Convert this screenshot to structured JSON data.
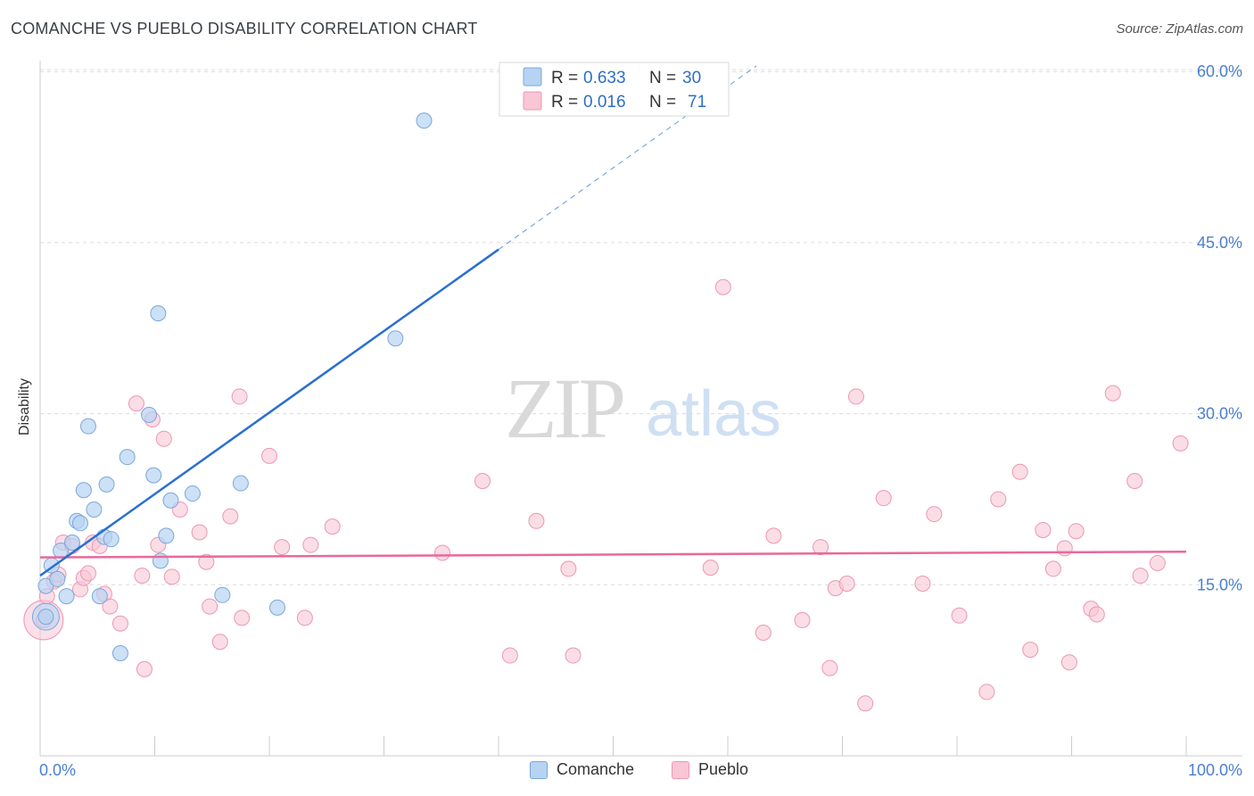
{
  "header": {
    "title": "COMANCHE VS PUEBLO DISABILITY CORRELATION CHART",
    "source": "Source: ZipAtlas.com"
  },
  "watermark": {
    "zip": "ZIP",
    "atlas": "atlas"
  },
  "legend": {
    "rows": [
      {
        "r_label": "R =",
        "r_value": "0.633",
        "n_label": "N =",
        "n_value": "30"
      },
      {
        "r_label": "R =",
        "r_value": "0.016",
        "n_label": "N =",
        "n_value": "71"
      }
    ]
  },
  "bottom_legend": {
    "series1": "Comanche",
    "series2": "Pueblo"
  },
  "colors": {
    "comanche_fill": "#b7d3f2",
    "comanche_stroke": "#7ba7dc",
    "comanche_line": "#2a6fd1",
    "pueblo_fill": "#f9c6d5",
    "pueblo_stroke": "#ec97b3",
    "pueblo_line": "#e8699a",
    "value_text": "#2f6ec4",
    "tick_text": "#4a7fd0",
    "grid": "#dcdcdc"
  },
  "chart_data": {
    "type": "scatter",
    "title": "COMANCHE VS PUEBLO DISABILITY CORRELATION CHART",
    "xlabel": "",
    "ylabel": "Disability",
    "xlim": [
      0,
      100
    ],
    "ylim": [
      0,
      65
    ],
    "x_tick_labels": [
      "0.0%",
      "100.0%"
    ],
    "y_ticks": [
      15,
      30,
      45,
      60
    ],
    "y_tick_labels": [
      "15.0%",
      "30.0%",
      "45.0%",
      "60.0%"
    ],
    "grid": "horizontal dashed",
    "legend_position": "top-center",
    "series": [
      {
        "name": "Comanche",
        "r": 0.633,
        "n": 30,
        "trend": {
          "x_start": 0,
          "y_start": 15.8,
          "x_solid_end": 40,
          "y_solid_end": 44.4,
          "x_dash_end": 62.5,
          "y_dash_end": 60.5
        },
        "points": [
          [
            0.5,
            12.2
          ],
          [
            0.5,
            14.9
          ],
          [
            1.0,
            16.7
          ],
          [
            1.5,
            15.5
          ],
          [
            1.8,
            18.0
          ],
          [
            2.3,
            14.0
          ],
          [
            2.8,
            18.7
          ],
          [
            3.2,
            20.6
          ],
          [
            3.5,
            20.4
          ],
          [
            3.8,
            23.3
          ],
          [
            4.2,
            28.9
          ],
          [
            4.7,
            21.6
          ],
          [
            5.2,
            14.0
          ],
          [
            5.6,
            19.2
          ],
          [
            5.8,
            23.8
          ],
          [
            6.2,
            19.0
          ],
          [
            7.0,
            9.0
          ],
          [
            7.6,
            26.2
          ],
          [
            9.5,
            29.9
          ],
          [
            9.9,
            24.6
          ],
          [
            10.3,
            38.8
          ],
          [
            10.5,
            17.1
          ],
          [
            11.0,
            19.3
          ],
          [
            11.4,
            22.4
          ],
          [
            13.3,
            23.0
          ],
          [
            15.9,
            14.1
          ],
          [
            17.5,
            23.9
          ],
          [
            20.7,
            13.0
          ],
          [
            31.0,
            36.6
          ],
          [
            33.5,
            55.7
          ]
        ]
      },
      {
        "name": "Pueblo",
        "r": 0.016,
        "n": 71,
        "trend": {
          "x_start": 0,
          "y_start": 17.4,
          "x_end": 100,
          "y_end": 17.9
        },
        "points": [
          [
            0.3,
            11.9
          ],
          [
            0.6,
            14.0
          ],
          [
            1.2,
            15.3
          ],
          [
            1.6,
            15.9
          ],
          [
            2.0,
            18.7
          ],
          [
            2.8,
            18.4
          ],
          [
            3.5,
            14.6
          ],
          [
            3.8,
            15.6
          ],
          [
            4.2,
            16.0
          ],
          [
            4.6,
            18.7
          ],
          [
            5.2,
            18.4
          ],
          [
            5.6,
            14.2
          ],
          [
            6.1,
            13.1
          ],
          [
            7.0,
            11.6
          ],
          [
            8.4,
            30.9
          ],
          [
            8.9,
            15.8
          ],
          [
            9.1,
            7.6
          ],
          [
            9.8,
            29.5
          ],
          [
            10.3,
            18.5
          ],
          [
            10.8,
            27.8
          ],
          [
            11.5,
            15.7
          ],
          [
            12.2,
            21.6
          ],
          [
            13.9,
            19.6
          ],
          [
            14.5,
            17.0
          ],
          [
            14.8,
            13.1
          ],
          [
            15.7,
            10.0
          ],
          [
            16.6,
            21.0
          ],
          [
            17.4,
            31.5
          ],
          [
            17.6,
            12.1
          ],
          [
            20.0,
            26.3
          ],
          [
            21.1,
            18.3
          ],
          [
            23.1,
            12.1
          ],
          [
            23.6,
            18.5
          ],
          [
            25.5,
            20.1
          ],
          [
            35.1,
            17.8
          ],
          [
            38.6,
            24.1
          ],
          [
            41.0,
            8.8
          ],
          [
            43.3,
            20.6
          ],
          [
            46.1,
            16.4
          ],
          [
            46.5,
            8.8
          ],
          [
            58.5,
            16.5
          ],
          [
            59.6,
            41.1
          ],
          [
            63.1,
            10.8
          ],
          [
            64.0,
            19.3
          ],
          [
            66.5,
            11.9
          ],
          [
            68.1,
            18.3
          ],
          [
            68.9,
            7.7
          ],
          [
            69.4,
            14.7
          ],
          [
            70.4,
            15.1
          ],
          [
            71.2,
            31.5
          ],
          [
            72.0,
            4.6
          ],
          [
            73.6,
            22.6
          ],
          [
            77.0,
            15.1
          ],
          [
            78.0,
            21.2
          ],
          [
            80.2,
            12.3
          ],
          [
            82.6,
            5.6
          ],
          [
            83.6,
            22.5
          ],
          [
            85.5,
            24.9
          ],
          [
            86.4,
            9.3
          ],
          [
            87.5,
            19.8
          ],
          [
            88.4,
            16.4
          ],
          [
            89.4,
            18.2
          ],
          [
            89.8,
            8.2
          ],
          [
            90.4,
            19.7
          ],
          [
            91.7,
            12.9
          ],
          [
            92.2,
            12.4
          ],
          [
            93.6,
            31.8
          ],
          [
            95.5,
            24.1
          ],
          [
            96.0,
            15.8
          ],
          [
            97.5,
            16.9
          ],
          [
            99.5,
            27.4
          ]
        ]
      }
    ]
  }
}
